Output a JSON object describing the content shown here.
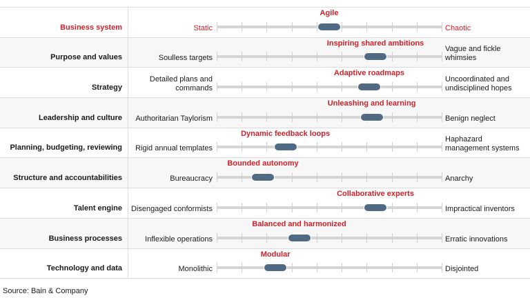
{
  "chart_data": {
    "type": "table",
    "title": "",
    "scale": {
      "min": 0,
      "max": 9,
      "ticks": [
        0,
        1,
        2,
        3,
        4,
        5,
        6,
        7,
        8,
        9
      ]
    },
    "rows": [
      {
        "dimension": "Business system",
        "left": "Static",
        "right": "Chaotic",
        "ideal": "Agile",
        "position": 4.5,
        "highlight": true
      },
      {
        "dimension": "Purpose and values",
        "left": "Soulless targets",
        "right": "Vague and fickle whimsies",
        "ideal": "Inspiring shared ambitions",
        "position": 6.35
      },
      {
        "dimension": "Strategy",
        "left": "Detailed plans and commands",
        "right": "Uncoordinated and undisciplined hopes",
        "ideal": "Adaptive roadmaps",
        "position": 6.1
      },
      {
        "dimension": "Leadership and culture",
        "left": "Authoritarian Taylorism",
        "right": "Benign neglect",
        "ideal": "Unleashing and learning",
        "position": 6.2
      },
      {
        "dimension": "Planning, budgeting, reviewing",
        "left": "Rigid annual templates",
        "right": "Haphazard management systems",
        "ideal": "Dynamic feedback loops",
        "position": 2.75
      },
      {
        "dimension": "Structure and accountabilities",
        "left": "Bureaucracy",
        "right": "Anarchy",
        "ideal": "Bounded autonomy",
        "position": 1.85
      },
      {
        "dimension": "Talent engine",
        "left": "Disengaged conformists",
        "right": "Impractical inventors",
        "ideal": "Collaborative experts",
        "position": 6.35
      },
      {
        "dimension": "Business processes",
        "left": "Inflexible operations",
        "right": "Erratic innovations",
        "ideal": "Balanced and harmonized",
        "position": 3.3
      },
      {
        "dimension": "Technology and data",
        "left": "Monolithic",
        "right": "Disjointed",
        "ideal": "Modular",
        "position": 2.35
      }
    ]
  },
  "footer": {
    "source": "Source: Bain & Company"
  },
  "colors": {
    "accent_red": "#d0202a",
    "pill": "#4f6a82",
    "track": "#d5d5d5",
    "alt_row": "#f7f7f7"
  }
}
